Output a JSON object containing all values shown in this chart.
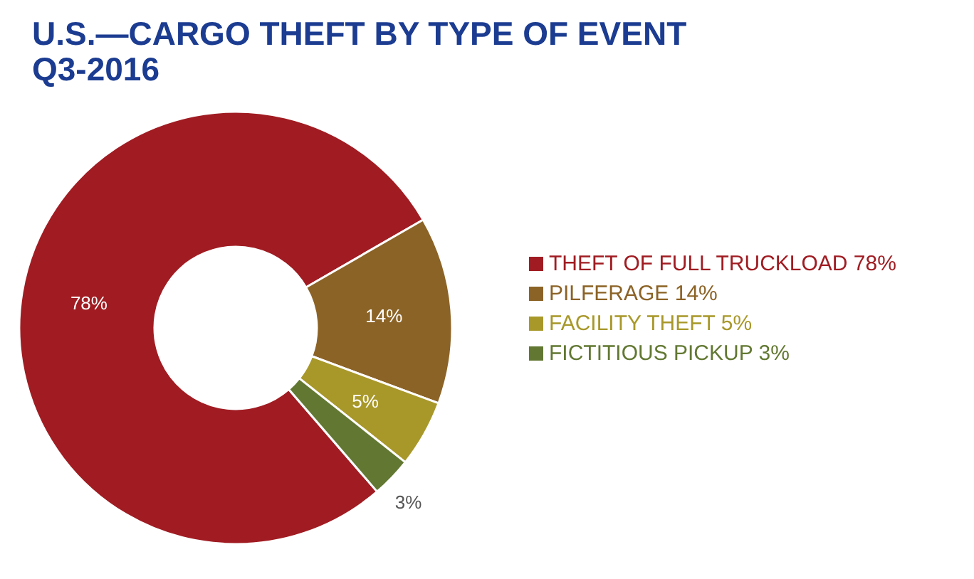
{
  "chart_data": {
    "type": "donut",
    "title": "U.S.—CARGO THEFT BY TYPE OF EVENT\nQ3-2016",
    "categories": [
      "THEFT OF FULL TRUCKLOAD 78%",
      "PILFERAGE 14%",
      "FACILITY THEFT 5%",
      "FICTITIOUS PICKUP 3%"
    ],
    "values": [
      78,
      14,
      5,
      3
    ],
    "value_labels": [
      "78%",
      "14%",
      "5%",
      "3%"
    ],
    "colors": [
      "#a01c22",
      "#8c6326",
      "#a8982a",
      "#627832"
    ],
    "legend": "right"
  }
}
